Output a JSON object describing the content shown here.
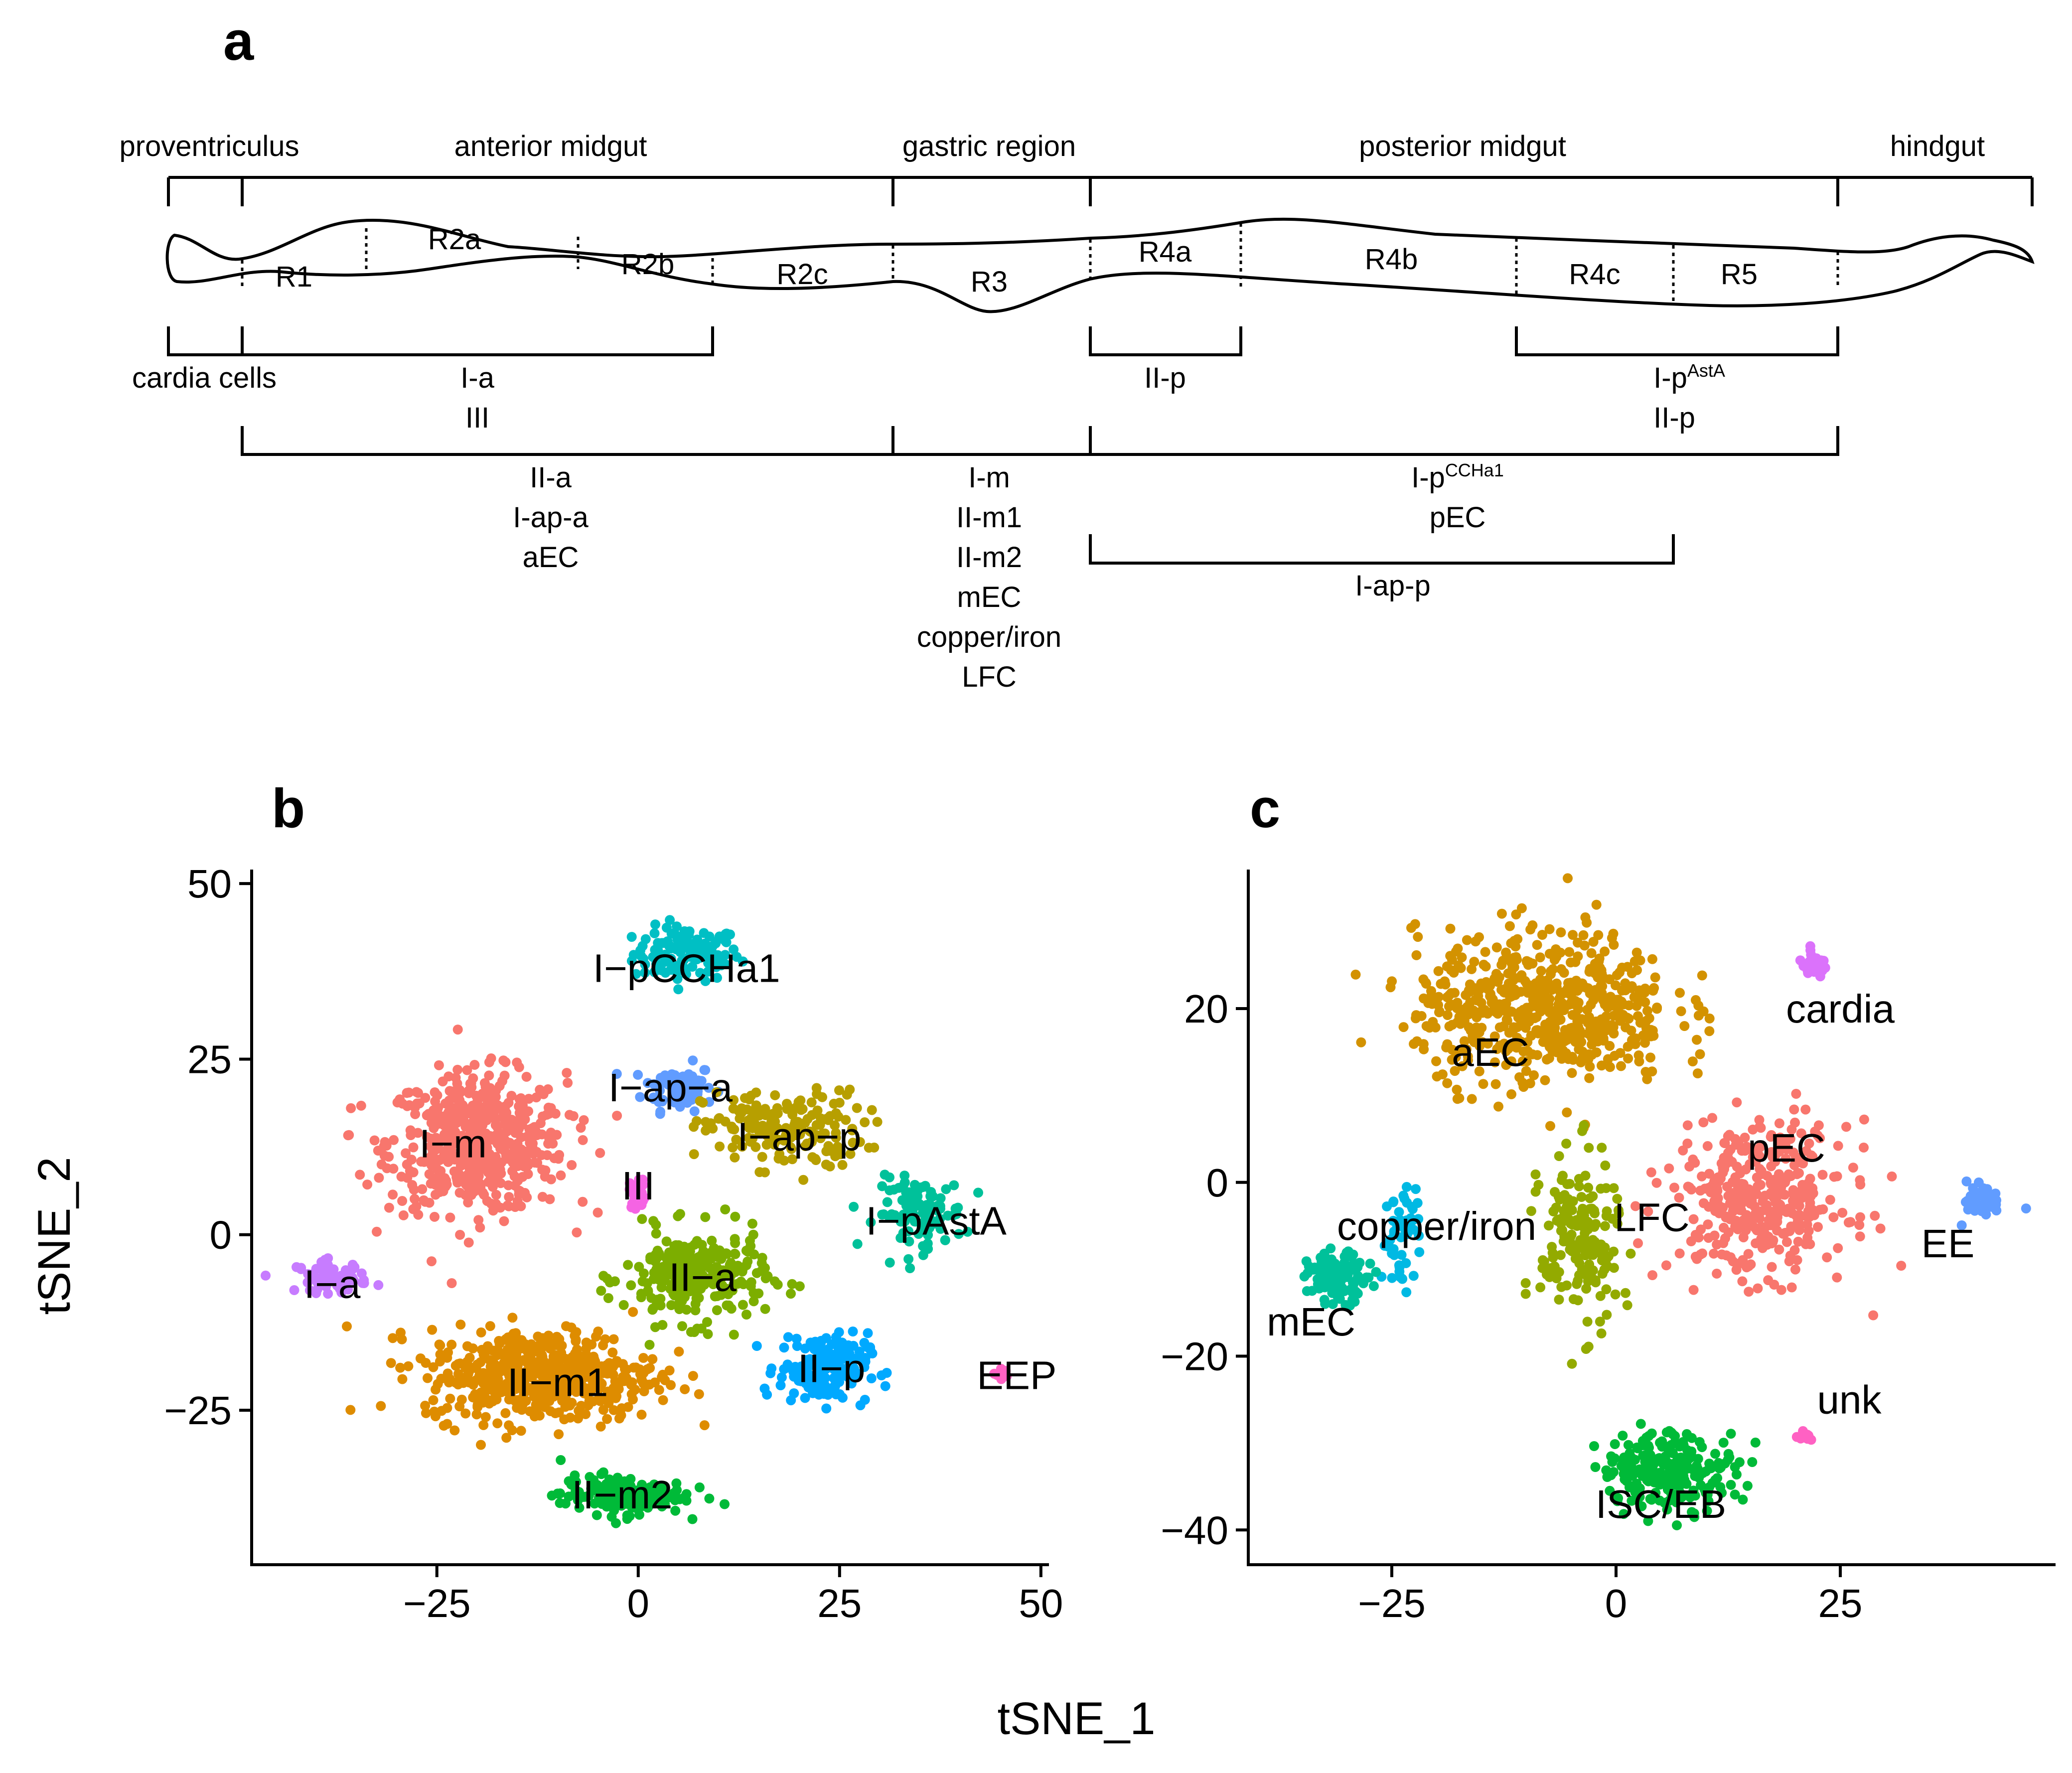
{
  "panel_labels": {
    "a": "a",
    "b": "b",
    "c": "c"
  },
  "gut": {
    "top_regions": [
      "proventriculus",
      "anterior midgut",
      "gastric region",
      "posterior midgut",
      "hindgut"
    ],
    "segments": [
      "R1",
      "R2a",
      "R2b",
      "R2c",
      "R3",
      "R4a",
      "R4b",
      "R4c",
      "R5"
    ],
    "bracket_labels": {
      "cardia": "cardia cells",
      "r1_r2": [
        "I-a",
        "III"
      ],
      "r4a": "II-p",
      "r4c_r5": {
        "line1_base": "I-p",
        "line1_sup": "AstA",
        "line2": "II-p"
      },
      "anterior": [
        "II-a",
        "I-ap-a",
        "aEC"
      ],
      "gastric": [
        "I-m",
        "II-m1",
        "II-m2",
        "mEC",
        "copper/iron",
        "LFC"
      ],
      "posterior": {
        "line1_base": "I-p",
        "line1_sup": "CCHa1",
        "line2": "pEC"
      },
      "r4_r4c": "I-ap-p"
    }
  },
  "axis_titles": {
    "x": "tSNE_1",
    "y": "tSNE_2"
  },
  "chart_data": [
    {
      "type": "scatter",
      "panel": "b",
      "xlabel": "tSNE_1",
      "ylabel": "tSNE_2",
      "xlim": [
        -48,
        51
      ],
      "ylim": [
        -47,
        52
      ],
      "xticks": [
        -25,
        0,
        25,
        50
      ],
      "yticks": [
        -25,
        0,
        25,
        50
      ],
      "xtick_labels": [
        "−25",
        "0",
        "25",
        "50"
      ],
      "ytick_labels": [
        "−25",
        "0",
        "25",
        "50"
      ],
      "clusters": [
        {
          "name": "I−pCCHa1",
          "color": "#00BFC4",
          "center": [
            6,
            40
          ],
          "spread": [
            6,
            3.5
          ],
          "n": 120,
          "label_pos": [
            6,
            38
          ]
        },
        {
          "name": "I−ap−a",
          "color": "#619CFF",
          "center": [
            5,
            21
          ],
          "spread": [
            4,
            3
          ],
          "n": 75,
          "label_pos": [
            4,
            21
          ]
        },
        {
          "name": "I−m",
          "color": "#F8766D",
          "center": [
            -20,
            13
          ],
          "spread": [
            10,
            9
          ],
          "n": 560,
          "label_pos": [
            -23,
            13
          ]
        },
        {
          "name": "I−ap−p",
          "color": "#B79F00",
          "center": [
            18,
            15
          ],
          "spread": [
            9,
            5
          ],
          "n": 180,
          "label_pos": [
            20,
            14
          ]
        },
        {
          "name": "III",
          "color": "#F564E3",
          "center": [
            0,
            6
          ],
          "spread": [
            1,
            2
          ],
          "n": 25,
          "label_pos": [
            0,
            7
          ]
        },
        {
          "name": "I−pAstA",
          "color": "#00C19A",
          "center": [
            35,
            3
          ],
          "spread": [
            5,
            4.5
          ],
          "n": 110,
          "label_pos": [
            37,
            2
          ]
        },
        {
          "name": "I−a",
          "color": "#C77CFF",
          "center": [
            -38,
            -6
          ],
          "spread": [
            4,
            2
          ],
          "n": 60,
          "label_pos": [
            -38,
            -7
          ]
        },
        {
          "name": "II−a",
          "color": "#7CAE00",
          "center": [
            7,
            -6
          ],
          "spread": [
            8,
            6
          ],
          "n": 260,
          "label_pos": [
            8,
            -6
          ]
        },
        {
          "name": "II−p",
          "color": "#00A9FF",
          "center": [
            23,
            -19
          ],
          "spread": [
            5,
            4.5
          ],
          "n": 170,
          "label_pos": [
            24,
            -19
          ]
        },
        {
          "name": "EEP",
          "color": "#FF61C3",
          "center": [
            45,
            -20
          ],
          "spread": [
            0.8,
            0.8
          ],
          "n": 12,
          "label_pos": [
            47,
            -20
          ]
        },
        {
          "name": "II−m1",
          "color": "#DE8C00",
          "center": [
            -12,
            -20
          ],
          "spread": [
            13,
            6
          ],
          "n": 520,
          "label_pos": [
            -10,
            -21
          ]
        },
        {
          "name": "II−m2",
          "color": "#00BA38",
          "center": [
            -2,
            -37
          ],
          "spread": [
            7,
            2.5
          ],
          "n": 170,
          "label_pos": [
            -2,
            -37
          ]
        }
      ]
    },
    {
      "type": "scatter",
      "panel": "c",
      "xlabel": "tSNE_1",
      "ylabel": "tSNE_2",
      "xlim": [
        -41,
        49
      ],
      "ylim": [
        -44,
        36
      ],
      "xticks": [
        -25,
        0,
        25
      ],
      "yticks": [
        -40,
        -20,
        0,
        20
      ],
      "xtick_labels": [
        "−25",
        "0",
        "25"
      ],
      "ytick_labels": [
        "−40",
        "−20",
        "0",
        "20"
      ],
      "clusters": [
        {
          "name": "aEC",
          "color": "#D39200",
          "center": [
            -8,
            20
          ],
          "spread": [
            13,
            8
          ],
          "n": 600,
          "label_pos": [
            -14,
            15
          ]
        },
        {
          "name": "cardia",
          "color": "#DB72FB",
          "center": [
            22,
            25
          ],
          "spread": [
            1.5,
            1.2
          ],
          "n": 30,
          "label_pos": [
            25,
            20
          ]
        },
        {
          "name": "pEC",
          "color": "#F8766D",
          "center": [
            16,
            -2
          ],
          "spread": [
            9,
            8
          ],
          "n": 380,
          "label_pos": [
            19,
            4
          ]
        },
        {
          "name": "EE",
          "color": "#619CFF",
          "center": [
            41,
            -2
          ],
          "spread": [
            2,
            2
          ],
          "n": 40,
          "label_pos": [
            37,
            -7
          ]
        },
        {
          "name": "LFC",
          "color": "#93AA00",
          "center": [
            -4,
            -7
          ],
          "spread": [
            4,
            9
          ],
          "n": 180,
          "label_pos": [
            4,
            -4
          ]
        },
        {
          "name": "copper/iron",
          "color": "#00B9E3",
          "center": [
            -24,
            -6
          ],
          "spread": [
            2,
            5
          ],
          "n": 50,
          "label_pos": [
            -20,
            -5
          ]
        },
        {
          "name": "mEC",
          "color": "#00C19A",
          "center": [
            -31,
            -11
          ],
          "spread": [
            3,
            2.5
          ],
          "n": 120,
          "label_pos": [
            -34,
            -16
          ]
        },
        {
          "name": "unk",
          "color": "#FF61C3",
          "center": [
            21,
            -29
          ],
          "spread": [
            0.6,
            0.8
          ],
          "n": 10,
          "label_pos": [
            26,
            -25
          ]
        },
        {
          "name": "ISC/EB",
          "color": "#00BA38",
          "center": [
            6,
            -33
          ],
          "spread": [
            7,
            4
          ],
          "n": 230,
          "label_pos": [
            5,
            -37
          ]
        }
      ]
    }
  ]
}
